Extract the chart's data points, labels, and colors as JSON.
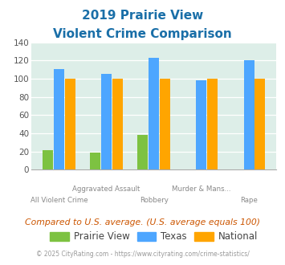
{
  "title_line1": "2019 Prairie View",
  "title_line2": "Violent Crime Comparison",
  "prairie_view": [
    21,
    19,
    38,
    0,
    0
  ],
  "texas": [
    111,
    105,
    123,
    98,
    120
  ],
  "national": [
    100,
    100,
    100,
    100,
    100
  ],
  "prairie_view_color": "#7dc241",
  "texas_color": "#4da6ff",
  "national_color": "#ffa500",
  "bg_color": "#ddeee8",
  "ylim": [
    0,
    140
  ],
  "yticks": [
    0,
    20,
    40,
    60,
    80,
    100,
    120,
    140
  ],
  "title_color": "#1a6fa8",
  "subtitle_note": "Compared to U.S. average. (U.S. average equals 100)",
  "footer": "© 2025 CityRating.com - https://www.cityrating.com/crime-statistics/",
  "subtitle_color": "#cc5500",
  "footer_color": "#999999",
  "line1_labels": [
    "",
    "Aggravated Assault",
    "",
    "Murder & Mans...",
    ""
  ],
  "line2_labels": [
    "All Violent Crime",
    "",
    "Robbery",
    "",
    "Rape"
  ]
}
